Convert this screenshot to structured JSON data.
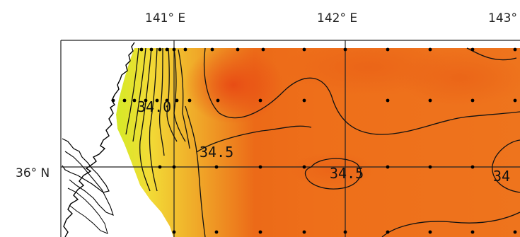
{
  "map": {
    "longitude_labels": [
      "141° E",
      "142° E",
      "143°"
    ],
    "latitude_labels": [
      "36° N"
    ],
    "contour_labels": [
      "34.0",
      "34.5",
      "34.5",
      "34"
    ]
  },
  "colors": {
    "land": "#ffffff",
    "coastline": "#000000",
    "sea_high_salinity": "#e85a18",
    "sea_mid_salinity": "#f07a1c",
    "sea_low_salinity": "#d8e820",
    "grid_line": "#222222",
    "contour_line": "#111111",
    "station_dot": "#000000"
  }
}
